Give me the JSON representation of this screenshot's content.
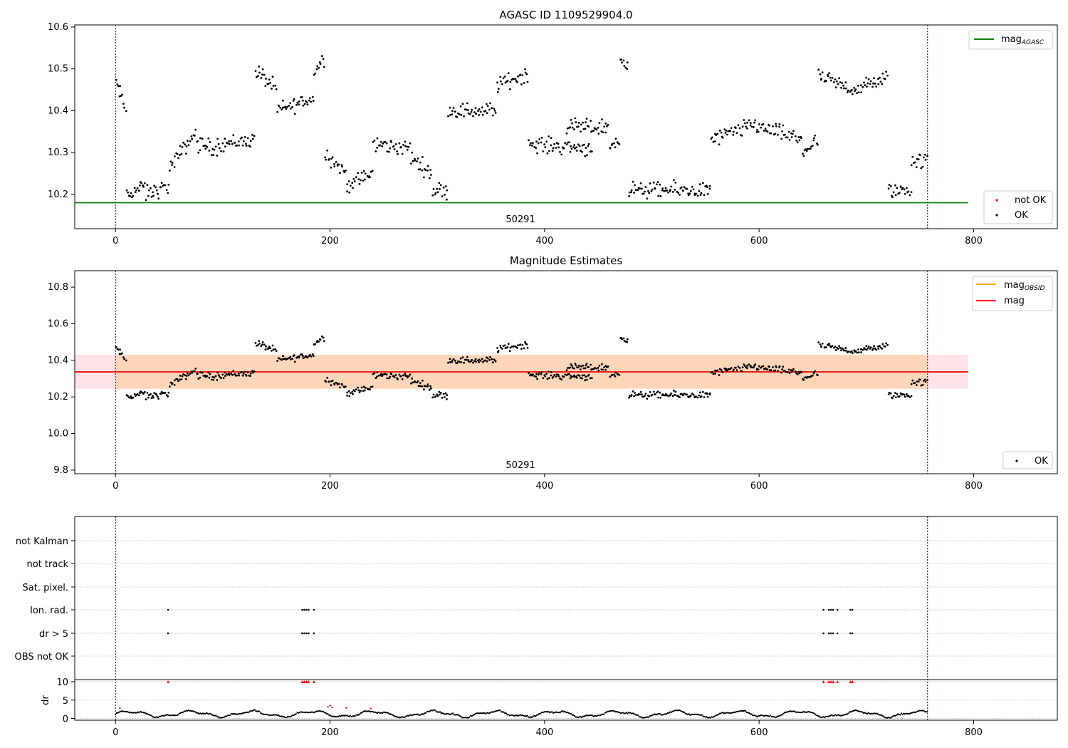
{
  "chart_data": [
    {
      "type": "scatter",
      "title": "AGASC ID 1109529904.0",
      "xlim": [
        -38,
        878
      ],
      "ylim": [
        10.118,
        10.605
      ],
      "x_ticks": [
        "0",
        "200",
        "400",
        "600",
        "800"
      ],
      "y_ticks": [
        "10.2",
        "10.3",
        "10.4",
        "10.5",
        "10.6"
      ],
      "obsid_label": "50291",
      "obsid_boundaries": [
        0,
        757
      ],
      "hlines": [
        {
          "name": "mag_agasc",
          "y": 10.18,
          "color": "#008000"
        }
      ],
      "legend_lines": [
        {
          "main": "mag",
          "sub": "AGASC",
          "color": "#008000"
        }
      ],
      "legend_points": [
        {
          "label": "not OK",
          "color": "#ff0000"
        },
        {
          "label": "OK",
          "color": "#000000"
        }
      ],
      "segments": [
        {
          "x": [
            0,
            10
          ],
          "y": [
            10.47,
            10.4
          ]
        },
        {
          "x": [
            10,
            28
          ],
          "y": [
            10.2,
            10.22
          ]
        },
        {
          "x": [
            28,
            50
          ],
          "y": [
            10.2,
            10.22
          ]
        },
        {
          "x": [
            50,
            75
          ],
          "y": [
            10.26,
            10.35
          ]
        },
        {
          "x": [
            75,
            95
          ],
          "y": [
            10.32,
            10.31
          ]
        },
        {
          "x": [
            95,
            130
          ],
          "y": [
            10.32,
            10.33
          ]
        },
        {
          "x": [
            130,
            150
          ],
          "y": [
            10.5,
            10.45
          ]
        },
        {
          "x": [
            150,
            185
          ],
          "y": [
            10.4,
            10.43
          ]
        },
        {
          "x": [
            185,
            195
          ],
          "y": [
            10.49,
            10.53
          ]
        },
        {
          "x": [
            195,
            215
          ],
          "y": [
            10.3,
            10.25
          ]
        },
        {
          "x": [
            215,
            240
          ],
          "y": [
            10.22,
            10.25
          ]
        },
        {
          "x": [
            240,
            275
          ],
          "y": [
            10.32,
            10.31
          ]
        },
        {
          "x": [
            275,
            295
          ],
          "y": [
            10.29,
            10.25
          ]
        },
        {
          "x": [
            295,
            310
          ],
          "y": [
            10.21,
            10.21
          ]
        },
        {
          "x": [
            310,
            355
          ],
          "y": [
            10.4,
            10.4
          ]
        },
        {
          "x": [
            355,
            385
          ],
          "y": [
            10.46,
            10.49
          ]
        },
        {
          "x": [
            385,
            445
          ],
          "y": [
            10.32,
            10.31
          ]
        },
        {
          "x": [
            420,
            460
          ],
          "y": [
            10.36,
            10.36
          ]
        },
        {
          "x": [
            460,
            470
          ],
          "y": [
            10.32,
            10.32
          ]
        },
        {
          "x": [
            470,
            478
          ],
          "y": [
            10.52,
            10.52
          ]
        },
        {
          "x": [
            478,
            555
          ],
          "y": [
            10.21,
            10.21
          ]
        },
        {
          "x": [
            555,
            590
          ],
          "y": [
            10.33,
            10.36
          ]
        },
        {
          "x": [
            590,
            640
          ],
          "y": [
            10.37,
            10.33
          ]
        },
        {
          "x": [
            640,
            655
          ],
          "y": [
            10.3,
            10.33
          ]
        },
        {
          "x": [
            655,
            690
          ],
          "y": [
            10.48,
            10.45
          ]
        },
        {
          "x": [
            690,
            720
          ],
          "y": [
            10.45,
            10.48
          ]
        },
        {
          "x": [
            720,
            742
          ],
          "y": [
            10.21,
            10.21
          ]
        },
        {
          "x": [
            742,
            757
          ],
          "y": [
            10.28,
            10.28
          ]
        }
      ]
    },
    {
      "type": "scatter",
      "title": "Magnitude Estimates",
      "xlim": [
        -38,
        878
      ],
      "ylim": [
        9.78,
        10.89
      ],
      "x_ticks": [
        "0",
        "200",
        "400",
        "600",
        "800"
      ],
      "y_ticks": [
        "9.8",
        "10.0",
        "10.2",
        "10.4",
        "10.6",
        "10.8"
      ],
      "obsid_label": "50291",
      "obsid_boundaries": [
        0,
        757
      ],
      "band": {
        "low": 10.245,
        "high": 10.43,
        "x": [
          -38,
          795
        ]
      },
      "inner_band": {
        "low": 10.245,
        "high": 10.43,
        "x": [
          0,
          757
        ]
      },
      "hlines": [
        {
          "name": "mag",
          "y": 10.337,
          "color": "#ff0000"
        }
      ],
      "legend_lines": [
        {
          "main": "mag",
          "sub": "OBSID",
          "color": "#ffa500"
        },
        {
          "main": "mag",
          "sub": "",
          "color": "#ff0000"
        }
      ],
      "legend_points": [
        {
          "label": "OK",
          "color": "#000000"
        }
      ]
    },
    {
      "type": "scatter",
      "flags": [
        "not Kalman",
        "not track",
        "Sat. pixel.",
        "Ion. rad.",
        "dr > 5",
        "OBS not OK"
      ],
      "flag_x": [
        49,
        174,
        176,
        178,
        180,
        185,
        660,
        665,
        667,
        669,
        673,
        685,
        687
      ],
      "dr_ylabel": "dr",
      "dr_ticks": [
        "0",
        "5",
        "10"
      ],
      "x_ticks": [
        "0",
        "200",
        "400",
        "600",
        "800"
      ]
    }
  ]
}
